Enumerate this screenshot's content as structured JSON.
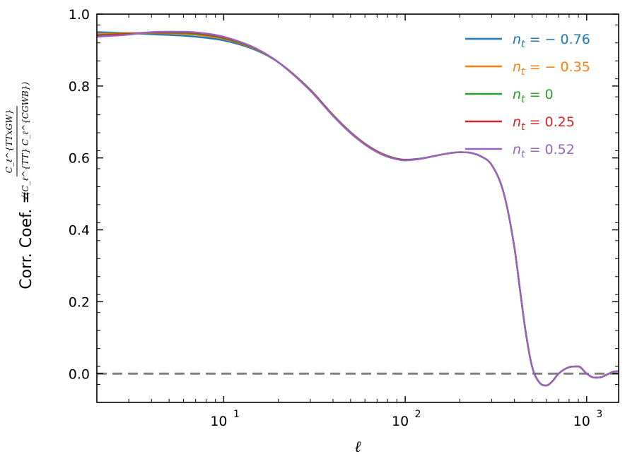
{
  "chart_data": {
    "type": "line",
    "xlabel": "ℓ",
    "ylabel": {
      "text": "Corr. Coef. =",
      "numerator": "C_ℓ^{TTxGW}",
      "denominator": "√(C_ℓ^{TT} C_ℓ^{CGWB})"
    },
    "xscale": "log",
    "xlim": [
      2,
      1500
    ],
    "ylim": [
      -0.08,
      1.0
    ],
    "x_tick_labels": [
      {
        "value": 10,
        "base": "10",
        "exp": "1"
      },
      {
        "value": 100,
        "base": "10",
        "exp": "2"
      },
      {
        "value": 1000,
        "base": "10",
        "exp": "3"
      }
    ],
    "y_ticks": [
      0.0,
      0.2,
      0.4,
      0.6,
      0.8,
      1.0
    ],
    "y_tick_labels": [
      "0.0",
      "0.2",
      "0.4",
      "0.6",
      "0.8",
      "1.0"
    ],
    "reference_line": {
      "y": 0.0,
      "style": "dashed",
      "color": "#808080"
    },
    "legend": {
      "placement": "top-right"
    },
    "x": [
      2,
      3,
      4,
      6,
      8,
      10,
      15,
      20,
      30,
      40,
      50,
      60,
      70,
      80,
      90,
      100,
      120,
      150,
      180,
      200,
      230,
      260,
      300,
      350,
      400,
      430,
      460,
      500,
      550,
      600,
      650,
      700,
      800,
      900,
      1000,
      1100,
      1200,
      1300,
      1400,
      1500
    ],
    "series": [
      {
        "name": "n_t = − 0.76",
        "label_prefix": "n",
        "label_sub": "t",
        "label_value": " = − 0.76",
        "color": "#1f77b4",
        "values": [
          0.95,
          0.947,
          0.944,
          0.94,
          0.934,
          0.927,
          0.9,
          0.866,
          0.79,
          0.72,
          0.672,
          0.64,
          0.619,
          0.606,
          0.598,
          0.595,
          0.598,
          0.607,
          0.614,
          0.616,
          0.614,
          0.605,
          0.58,
          0.5,
          0.35,
          0.23,
          0.12,
          0.02,
          -0.025,
          -0.033,
          -0.02,
          0.0,
          0.018,
          0.02,
          0.0,
          -0.011,
          -0.01,
          -0.002,
          0.005,
          0.007
        ]
      },
      {
        "name": "n_t = − 0.35",
        "label_prefix": "n",
        "label_sub": "t",
        "label_value": " = − 0.35",
        "color": "#ff7f0e",
        "values": [
          0.945,
          0.947,
          0.947,
          0.945,
          0.939,
          0.931,
          0.902,
          0.866,
          0.789,
          0.719,
          0.671,
          0.639,
          0.618,
          0.605,
          0.597,
          0.594,
          0.597,
          0.607,
          0.614,
          0.616,
          0.614,
          0.605,
          0.58,
          0.5,
          0.35,
          0.23,
          0.12,
          0.02,
          -0.025,
          -0.033,
          -0.02,
          0.0,
          0.018,
          0.02,
          0.0,
          -0.011,
          -0.01,
          -0.002,
          0.005,
          0.007
        ]
      },
      {
        "name": "n_t = 0",
        "label_prefix": "n",
        "label_sub": "t",
        "label_value": " = 0",
        "color": "#2ca02c",
        "values": [
          0.942,
          0.946,
          0.948,
          0.947,
          0.942,
          0.933,
          0.903,
          0.866,
          0.788,
          0.718,
          0.67,
          0.638,
          0.617,
          0.604,
          0.597,
          0.594,
          0.597,
          0.607,
          0.614,
          0.616,
          0.614,
          0.605,
          0.58,
          0.5,
          0.35,
          0.23,
          0.12,
          0.02,
          -0.025,
          -0.033,
          -0.02,
          0.0,
          0.018,
          0.02,
          0.0,
          -0.011,
          -0.01,
          -0.002,
          0.005,
          0.007
        ]
      },
      {
        "name": "n_t = 0.25",
        "label_prefix": "n",
        "label_sub": "t",
        "label_value": " = 0.25",
        "color": "#d62728",
        "values": [
          0.94,
          0.945,
          0.949,
          0.949,
          0.944,
          0.935,
          0.904,
          0.866,
          0.788,
          0.718,
          0.67,
          0.638,
          0.617,
          0.604,
          0.597,
          0.594,
          0.597,
          0.607,
          0.614,
          0.616,
          0.614,
          0.605,
          0.58,
          0.5,
          0.35,
          0.23,
          0.12,
          0.02,
          -0.025,
          -0.033,
          -0.02,
          0.0,
          0.018,
          0.02,
          0.0,
          -0.011,
          -0.01,
          -0.002,
          0.005,
          0.007
        ]
      },
      {
        "name": "n_t = 0.52",
        "label_prefix": "n",
        "label_sub": "t",
        "label_value": " = 0.52",
        "color": "#9467bd",
        "values": [
          0.937,
          0.943,
          0.95,
          0.951,
          0.946,
          0.937,
          0.905,
          0.866,
          0.787,
          0.717,
          0.669,
          0.637,
          0.616,
          0.603,
          0.596,
          0.593,
          0.597,
          0.607,
          0.614,
          0.616,
          0.614,
          0.605,
          0.58,
          0.5,
          0.35,
          0.23,
          0.12,
          0.02,
          -0.025,
          -0.033,
          -0.02,
          0.0,
          0.018,
          0.02,
          0.0,
          -0.011,
          -0.01,
          -0.002,
          0.005,
          0.007
        ]
      }
    ]
  }
}
